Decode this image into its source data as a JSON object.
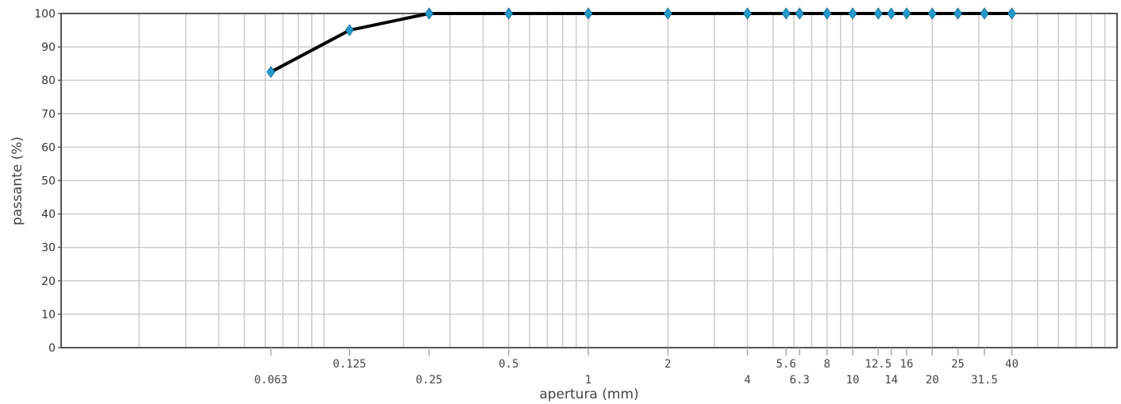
{
  "chart_data": {
    "type": "line",
    "title": "",
    "xlabel": "apertura (mm)",
    "ylabel": "passante (%)",
    "x_scale": "log",
    "ylim": [
      0,
      100
    ],
    "y_ticks": [
      0,
      10,
      20,
      30,
      40,
      50,
      60,
      70,
      80,
      90,
      100
    ],
    "x_tick_labels": [
      "0.063",
      "0.125",
      "0.25",
      "0.5",
      "1",
      "2",
      "4",
      "5.6",
      "6.3",
      "8",
      "10",
      "12.5",
      "14",
      "16",
      "20",
      "25",
      "31.5",
      "40"
    ],
    "grid": true,
    "series": [
      {
        "x": [
          0.063,
          0.125,
          0.25,
          0.5,
          1,
          2,
          4,
          5.6,
          6.3,
          8,
          10,
          12.5,
          14,
          16,
          20,
          25,
          31.5,
          40
        ],
        "y": [
          82.5,
          95,
          100,
          100,
          100,
          100,
          100,
          100,
          100,
          100,
          100,
          100,
          100,
          100,
          100,
          100,
          100,
          100
        ],
        "line_color": "#000000",
        "marker_color": "#1f9bd1",
        "marker": "diamond"
      }
    ]
  }
}
